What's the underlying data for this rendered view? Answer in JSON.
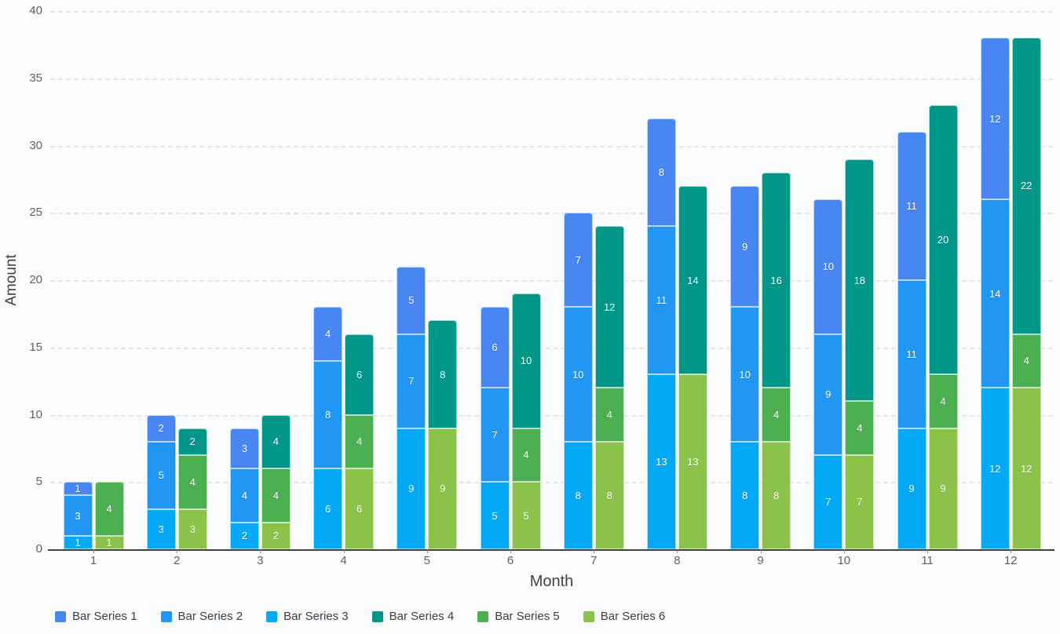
{
  "chart_data": {
    "type": "bar",
    "stacked": true,
    "xlabel": "Month",
    "ylabel": "Amount",
    "ylim": [
      0,
      40
    ],
    "ytick_step": 5,
    "y_ticks": [
      0,
      5,
      10,
      15,
      20,
      25,
      30,
      35,
      40
    ],
    "grid": "dashed-horizontal",
    "legend_position": "bottom-left",
    "categories": [
      "1",
      "2",
      "3",
      "4",
      "5",
      "6",
      "7",
      "8",
      "9",
      "10",
      "11",
      "12"
    ],
    "stacks": [
      {
        "name": "blue-stack",
        "series_order_top_to_bottom": [
          0,
          1,
          2
        ]
      },
      {
        "name": "green-stack",
        "series_order_top_to_bottom": [
          3,
          4,
          5
        ]
      }
    ],
    "series": [
      {
        "name": "Bar Series 1",
        "color": "#4886f2",
        "values": [
          1,
          2,
          3,
          4,
          5,
          6,
          7,
          8,
          9,
          10,
          11,
          12
        ]
      },
      {
        "name": "Bar Series 2",
        "color": "#2196f3",
        "values": [
          3,
          5,
          4,
          8,
          7,
          7,
          10,
          11,
          10,
          9,
          11,
          14
        ]
      },
      {
        "name": "Bar Series 3",
        "color": "#03a9f4",
        "values": [
          1,
          3,
          2,
          6,
          9,
          5,
          8,
          13,
          8,
          7,
          9,
          12
        ]
      },
      {
        "name": "Bar Series 4",
        "color": "#009688",
        "values": [
          0,
          2,
          4,
          6,
          8,
          10,
          12,
          14,
          16,
          18,
          20,
          22
        ]
      },
      {
        "name": "Bar Series 5",
        "color": "#4caf50",
        "values": [
          4,
          4,
          4,
          4,
          0,
          4,
          4,
          0,
          4,
          4,
          4,
          4
        ]
      },
      {
        "name": "Bar Series 6",
        "color": "#8bc34a",
        "values": [
          1,
          3,
          2,
          6,
          9,
          5,
          8,
          13,
          8,
          7,
          9,
          12
        ]
      }
    ],
    "stack_totals": {
      "blue": [
        5,
        10,
        9,
        18,
        21,
        18,
        25,
        32,
        27,
        26,
        31,
        38
      ],
      "green": [
        5,
        9,
        10,
        16,
        17,
        19,
        24,
        27,
        28,
        29,
        33,
        38
      ]
    }
  },
  "style": {
    "background": "#fafbfc",
    "gridline_color": "#e4e6e9",
    "axis_line_color": "#424242",
    "tick_label_color": "#616161",
    "axis_title_color": "#424242",
    "segment_label_color": "#ffffff"
  }
}
